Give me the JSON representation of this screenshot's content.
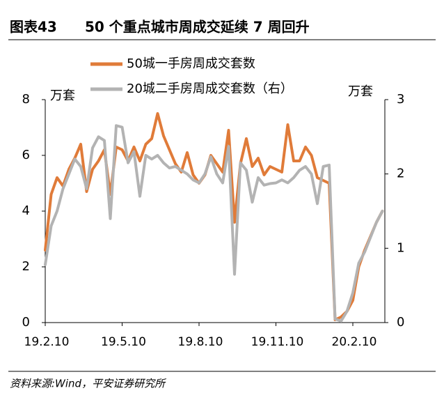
{
  "chart_data": {
    "type": "line",
    "label": "图表43",
    "title": "50 个重点城市周成交延续 7 周回升",
    "y_unit": "万套",
    "y2_unit": "万套",
    "source": "资料来源:Wind，平安证券研究所",
    "categories": [
      "19.2.10",
      null,
      null,
      null,
      null,
      null,
      null,
      null,
      null,
      null,
      null,
      null,
      null,
      "19.5.10",
      null,
      null,
      null,
      null,
      null,
      null,
      null,
      null,
      null,
      null,
      null,
      null,
      "19.8.10",
      null,
      null,
      null,
      null,
      null,
      null,
      null,
      null,
      null,
      null,
      null,
      null,
      "19.11.10",
      null,
      null,
      null,
      null,
      null,
      null,
      null,
      null,
      null,
      null,
      null,
      null,
      "20.2.10",
      null,
      null,
      null,
      null,
      null
    ],
    "ylim": [
      0,
      8
    ],
    "yticks": [
      0,
      2,
      4,
      6,
      8
    ],
    "y2lim": [
      0,
      3
    ],
    "y2ticks": [
      0,
      1,
      2,
      3
    ],
    "series": [
      {
        "name": "50城一手房周成交套数",
        "color": "#e07b39",
        "values": [
          2.6,
          4.6,
          5.2,
          4.9,
          5.5,
          5.9,
          6.4,
          4.7,
          5.5,
          5.8,
          6.2,
          4.6,
          6.3,
          6.2,
          5.8,
          6.3,
          5.8,
          6.4,
          6.6,
          7.5,
          6.7,
          6.2,
          5.7,
          5.4,
          6.1,
          5.3,
          5.0,
          5.3,
          6.0,
          5.7,
          5.4,
          6.9,
          3.6,
          5.7,
          6.6,
          5.6,
          5.9,
          5.3,
          5.6,
          5.5,
          5.4,
          7.1,
          5.8,
          5.8,
          6.3,
          6.0,
          5.2,
          5.1,
          5.0,
          0.1,
          0.2,
          0.4,
          0.8,
          2.0,
          2.6,
          3.1,
          3.6,
          4.0
        ]
      },
      {
        "name": "20城二手房周成交套数（右）",
        "color": "#b3b3b3",
        "axis": "y2",
        "values": [
          0.78,
          1.3,
          1.5,
          1.8,
          2.0,
          2.2,
          2.1,
          1.8,
          2.35,
          2.5,
          2.45,
          1.4,
          2.65,
          2.63,
          2.15,
          2.3,
          1.7,
          2.25,
          2.2,
          2.25,
          2.15,
          2.08,
          2.1,
          2.05,
          2.0,
          1.92,
          1.88,
          2.0,
          2.23,
          2.0,
          1.88,
          2.37,
          0.65,
          2.15,
          2.05,
          1.62,
          1.95,
          1.85,
          1.87,
          1.88,
          1.92,
          1.88,
          1.95,
          2.05,
          2.1,
          2.0,
          1.6,
          2.1,
          2.12,
          0.05,
          0.02,
          0.15,
          0.4,
          0.8,
          0.95,
          1.15,
          1.35,
          1.5
        ]
      }
    ]
  }
}
